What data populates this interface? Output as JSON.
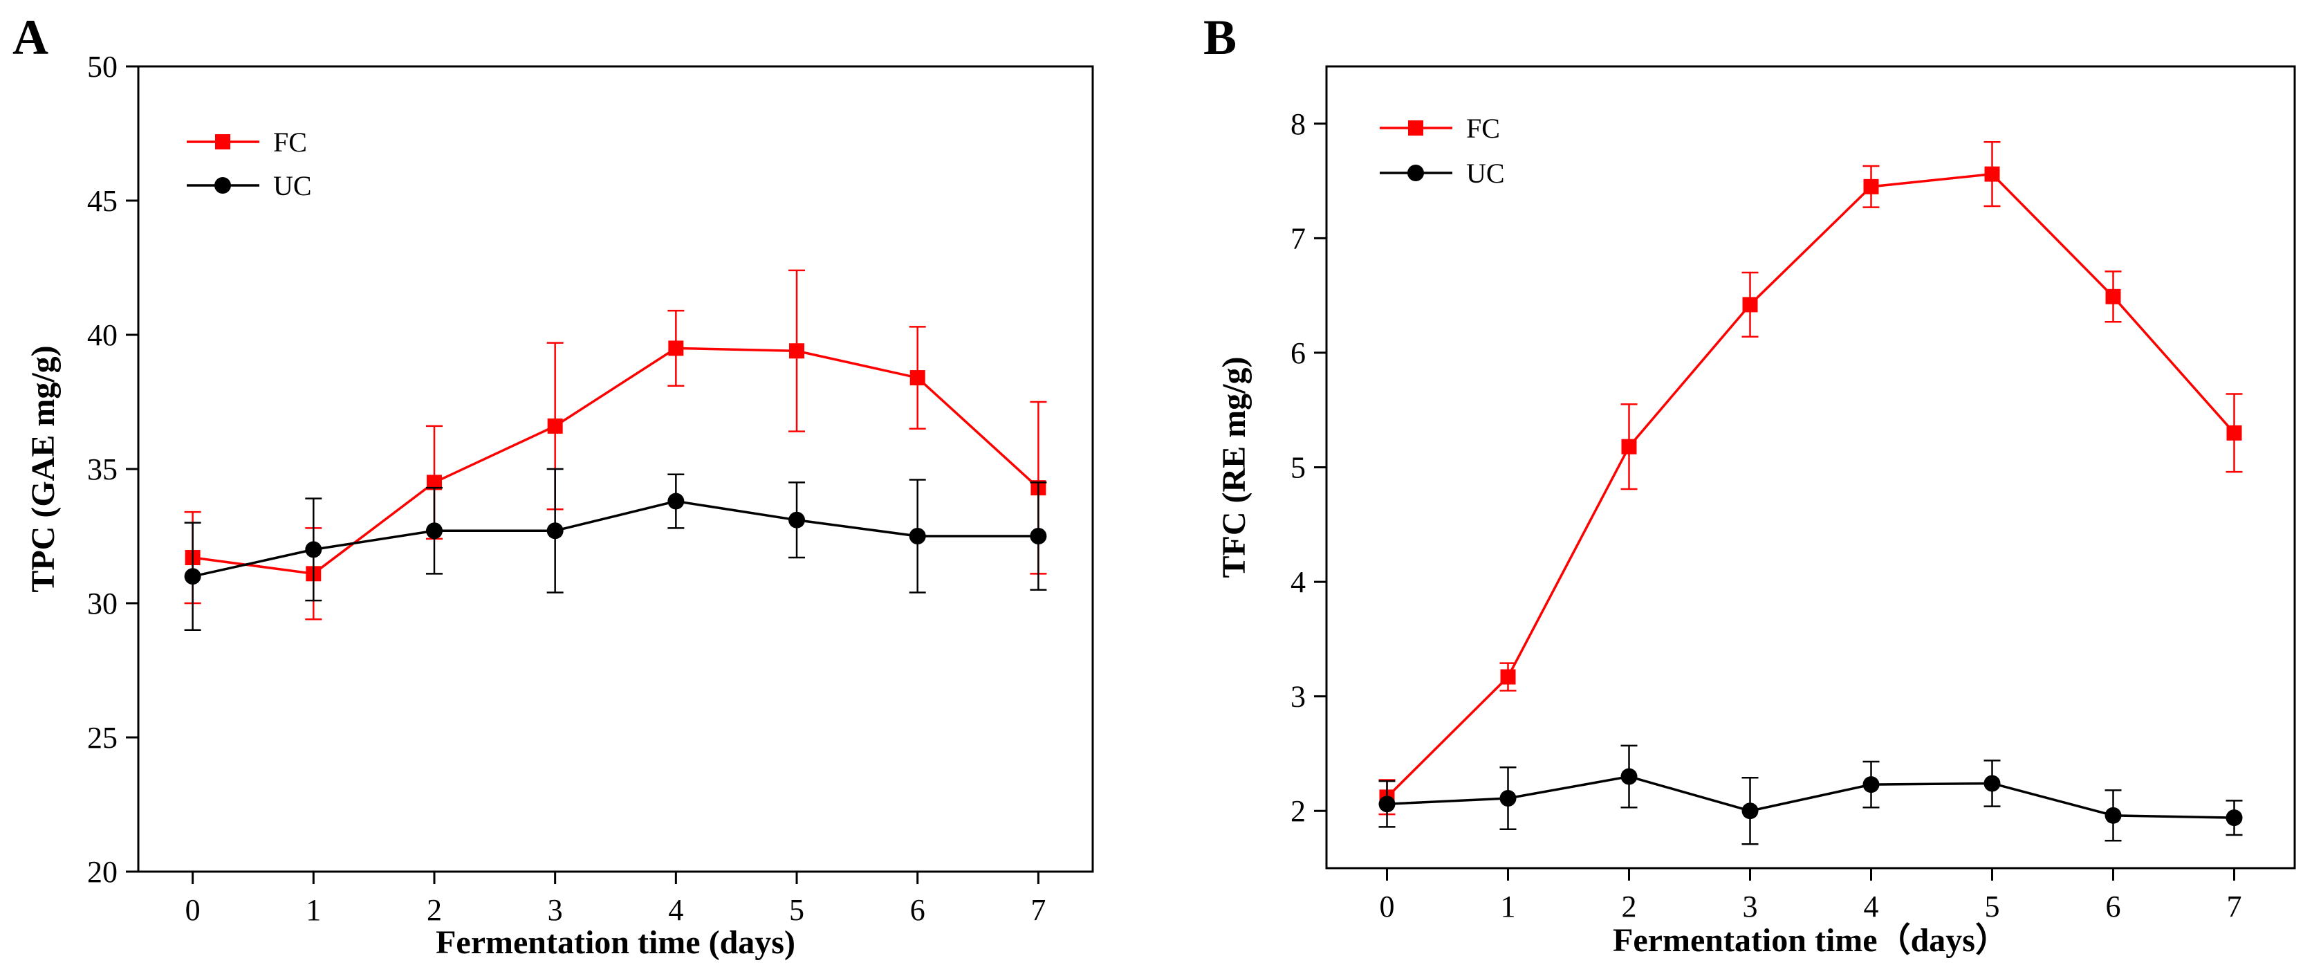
{
  "chart_data": [
    {
      "panel": "A",
      "type": "line",
      "title": "",
      "xlabel": "Fermentation time (days)",
      "ylabel": "TPC (GAE mg/g)",
      "xlim": [
        -0.45,
        7.45
      ],
      "ylim": [
        20,
        50
      ],
      "xticks": [
        0,
        1,
        2,
        3,
        4,
        5,
        6,
        7
      ],
      "yticks": [
        20,
        25,
        30,
        35,
        40,
        45,
        50
      ],
      "x": [
        0,
        1,
        2,
        3,
        4,
        5,
        6,
        7
      ],
      "series": [
        {
          "name": "FC",
          "color": "#ff0000",
          "marker": "square",
          "values": [
            31.7,
            31.1,
            34.5,
            36.6,
            39.5,
            39.4,
            38.4,
            34.3
          ],
          "errors": [
            1.7,
            1.7,
            2.1,
            3.1,
            1.4,
            3.0,
            1.9,
            3.2
          ]
        },
        {
          "name": "UC",
          "color": "#000000",
          "marker": "circle",
          "values": [
            31.0,
            32.0,
            32.7,
            32.7,
            33.8,
            33.1,
            32.5,
            32.5
          ],
          "errors": [
            2.0,
            1.9,
            1.6,
            2.3,
            1.0,
            1.4,
            2.1,
            2.0
          ]
        }
      ],
      "legend_position": "top-left"
    },
    {
      "panel": "B",
      "type": "line",
      "title": "",
      "xlabel": "Fermentation time（days）",
      "ylabel": "TFC (RE mg/g)",
      "xlim": [
        -0.5,
        7.5
      ],
      "ylim": [
        1.5,
        8.5
      ],
      "xticks": [
        0,
        1,
        2,
        3,
        4,
        5,
        6,
        7
      ],
      "yticks": [
        2,
        3,
        4,
        5,
        6,
        7,
        8
      ],
      "x": [
        0,
        1,
        2,
        3,
        4,
        5,
        6,
        7
      ],
      "series": [
        {
          "name": "FC",
          "color": "#ff0000",
          "marker": "square",
          "values": [
            2.12,
            3.17,
            5.18,
            6.42,
            7.45,
            7.56,
            6.49,
            5.3
          ],
          "errors": [
            0.15,
            0.12,
            0.37,
            0.28,
            0.18,
            0.28,
            0.22,
            0.34
          ]
        },
        {
          "name": "UC",
          "color": "#000000",
          "marker": "circle",
          "values": [
            2.06,
            2.11,
            2.3,
            2.0,
            2.23,
            2.24,
            1.96,
            1.94
          ],
          "errors": [
            0.2,
            0.27,
            0.27,
            0.29,
            0.2,
            0.2,
            0.22,
            0.15
          ]
        }
      ],
      "legend_position": "top-left"
    }
  ]
}
